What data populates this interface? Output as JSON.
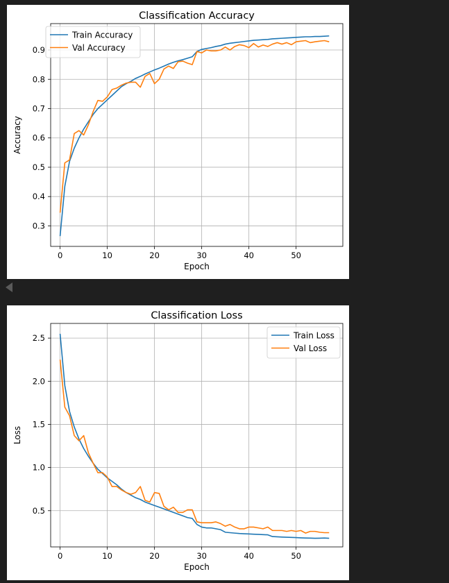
{
  "chart_data": [
    {
      "type": "line",
      "title": "Classification Accuracy",
      "xlabel": "Epoch",
      "ylabel": "Accuracy",
      "xlim": [
        -2,
        59.9
      ],
      "ylim": [
        0.23,
        0.99
      ],
      "xticks": [
        0,
        10,
        20,
        30,
        40,
        50
      ],
      "xtick_labels": [
        "0",
        "10",
        "20",
        "30",
        "40",
        "50"
      ],
      "yticks": [
        0.3,
        0.4,
        0.5,
        0.6,
        0.7,
        0.8,
        0.9
      ],
      "ytick_labels": [
        "0.3",
        "0.4",
        "0.5",
        "0.6",
        "0.7",
        "0.8",
        "0.9"
      ],
      "grid": true,
      "legend_position": "upper-left",
      "series": [
        {
          "name": "Train Accuracy",
          "color": "#1f77b4",
          "values": [
            0.265,
            0.435,
            0.52,
            0.565,
            0.6,
            0.63,
            0.655,
            0.68,
            0.7,
            0.715,
            0.73,
            0.745,
            0.76,
            0.775,
            0.785,
            0.793,
            0.803,
            0.81,
            0.818,
            0.825,
            0.832,
            0.838,
            0.845,
            0.852,
            0.858,
            0.863,
            0.867,
            0.872,
            0.877,
            0.895,
            0.902,
            0.905,
            0.908,
            0.912,
            0.915,
            0.92,
            0.923,
            0.925,
            0.927,
            0.929,
            0.931,
            0.933,
            0.934,
            0.935,
            0.936,
            0.938,
            0.939,
            0.94,
            0.941,
            0.942,
            0.943,
            0.944,
            0.945,
            0.945,
            0.946,
            0.946,
            0.947,
            0.948
          ]
        },
        {
          "name": "Val Accuracy",
          "color": "#ff7f0e",
          "values": [
            0.345,
            0.515,
            0.525,
            0.615,
            0.625,
            0.61,
            0.645,
            0.69,
            0.728,
            0.725,
            0.74,
            0.765,
            0.77,
            0.78,
            0.787,
            0.79,
            0.79,
            0.773,
            0.81,
            0.82,
            0.785,
            0.8,
            0.835,
            0.845,
            0.837,
            0.86,
            0.862,
            0.855,
            0.85,
            0.895,
            0.89,
            0.9,
            0.897,
            0.897,
            0.9,
            0.91,
            0.9,
            0.912,
            0.918,
            0.915,
            0.908,
            0.922,
            0.91,
            0.917,
            0.912,
            0.92,
            0.925,
            0.92,
            0.925,
            0.918,
            0.928,
            0.93,
            0.932,
            0.925,
            0.928,
            0.93,
            0.932,
            0.928
          ]
        }
      ]
    },
    {
      "type": "line",
      "title": "Classification Loss",
      "xlabel": "Epoch",
      "ylabel": "Loss",
      "xlim": [
        -2,
        59.9
      ],
      "ylim": [
        0.08,
        2.67
      ],
      "xticks": [
        0,
        10,
        20,
        30,
        40,
        50
      ],
      "xtick_labels": [
        "0",
        "10",
        "20",
        "30",
        "40",
        "50"
      ],
      "yticks": [
        0.5,
        1.0,
        1.5,
        2.0,
        2.5
      ],
      "ytick_labels": [
        "0.5",
        "1.0",
        "1.5",
        "2.0",
        "2.5"
      ],
      "grid": true,
      "legend_position": "upper-right",
      "series": [
        {
          "name": "Train Loss",
          "color": "#1f77b4",
          "values": [
            2.55,
            1.95,
            1.65,
            1.47,
            1.33,
            1.22,
            1.13,
            1.05,
            0.98,
            0.93,
            0.88,
            0.84,
            0.8,
            0.75,
            0.71,
            0.68,
            0.65,
            0.63,
            0.6,
            0.58,
            0.56,
            0.54,
            0.52,
            0.5,
            0.48,
            0.46,
            0.44,
            0.42,
            0.41,
            0.34,
            0.31,
            0.3,
            0.3,
            0.29,
            0.28,
            0.25,
            0.245,
            0.24,
            0.235,
            0.232,
            0.23,
            0.227,
            0.225,
            0.222,
            0.22,
            0.2,
            0.197,
            0.194,
            0.192,
            0.19,
            0.188,
            0.185,
            0.183,
            0.182,
            0.18,
            0.181,
            0.183,
            0.18
          ]
        },
        {
          "name": "Val Loss",
          "color": "#ff7f0e",
          "values": [
            2.25,
            1.7,
            1.6,
            1.37,
            1.31,
            1.37,
            1.17,
            1.05,
            0.94,
            0.94,
            0.89,
            0.78,
            0.78,
            0.74,
            0.71,
            0.69,
            0.71,
            0.78,
            0.62,
            0.6,
            0.71,
            0.7,
            0.55,
            0.51,
            0.54,
            0.48,
            0.48,
            0.51,
            0.51,
            0.37,
            0.36,
            0.36,
            0.36,
            0.37,
            0.35,
            0.32,
            0.34,
            0.31,
            0.29,
            0.29,
            0.31,
            0.31,
            0.3,
            0.29,
            0.31,
            0.27,
            0.27,
            0.27,
            0.26,
            0.27,
            0.26,
            0.27,
            0.24,
            0.26,
            0.26,
            0.25,
            0.245,
            0.245
          ]
        }
      ]
    }
  ]
}
